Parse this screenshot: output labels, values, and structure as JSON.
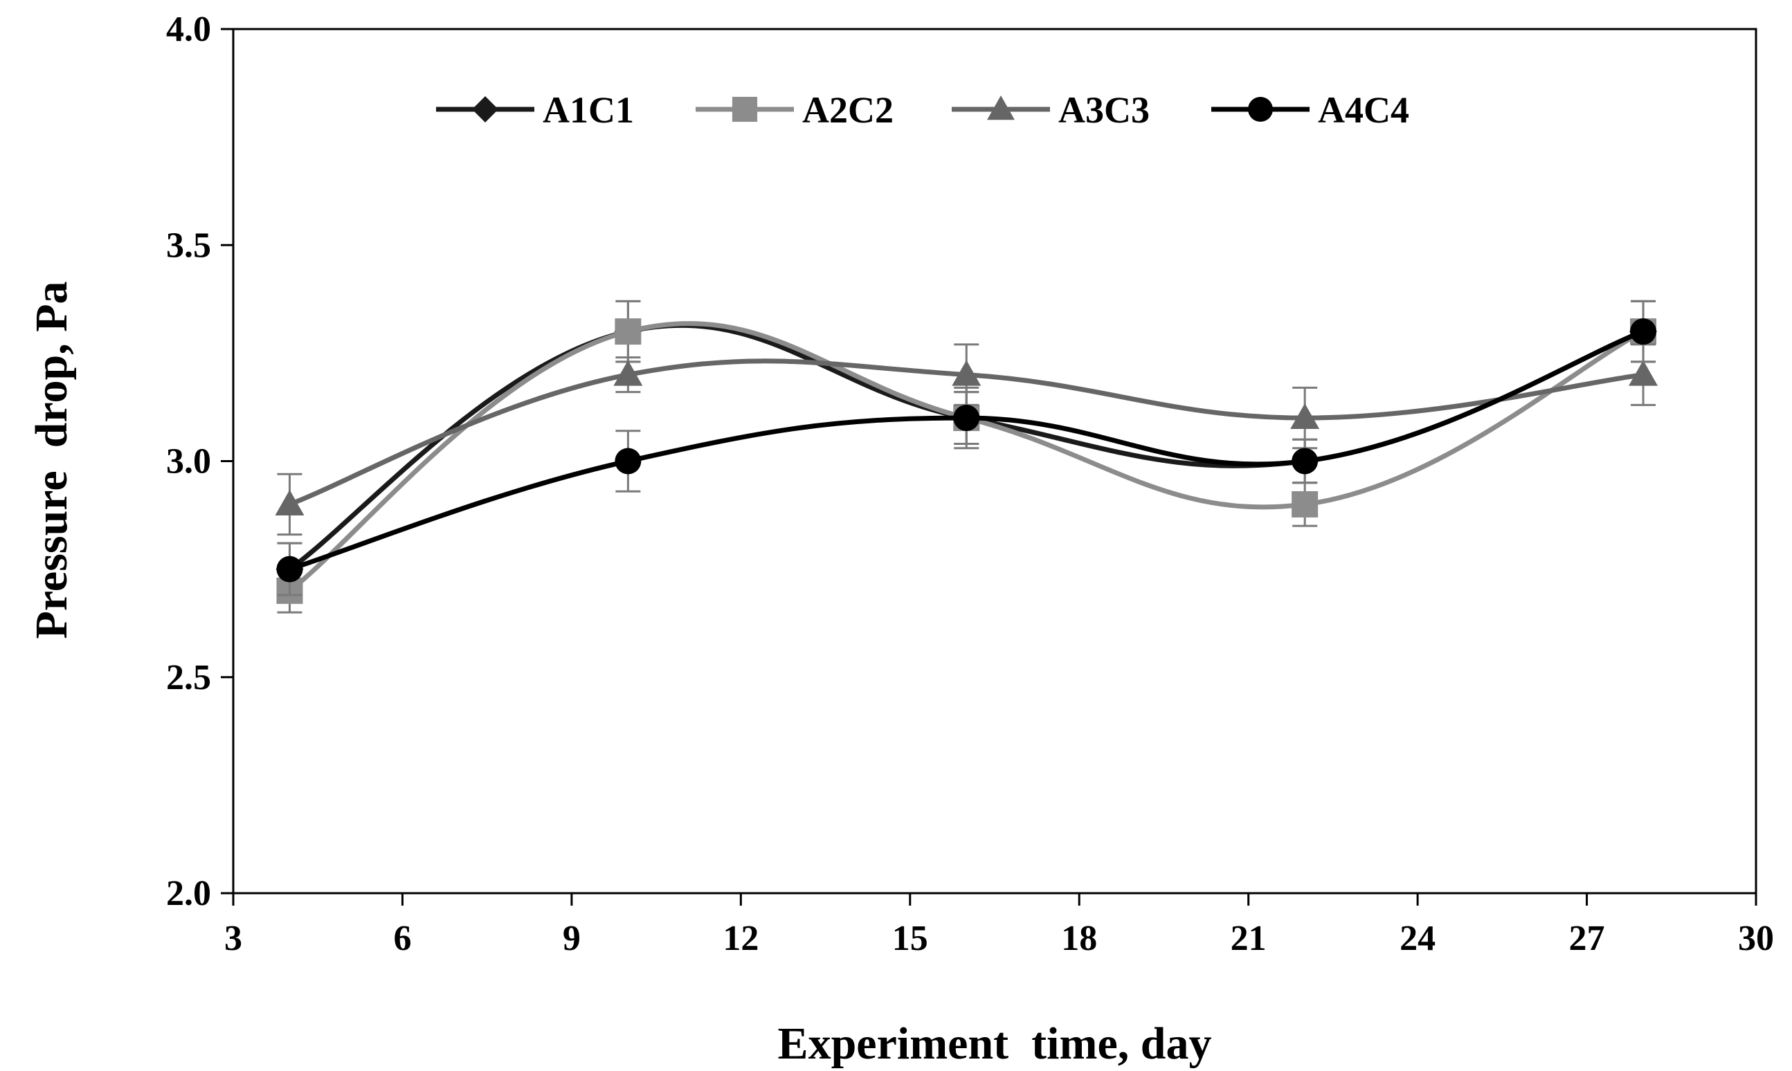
{
  "chart_data": {
    "type": "line",
    "title": "",
    "xlabel": "Experiment  time, day",
    "ylabel": "Pressure  drop, Pa",
    "xlim": [
      3,
      30
    ],
    "ylim": [
      2.0,
      4.0
    ],
    "x_ticks": [
      3,
      6,
      9,
      12,
      15,
      18,
      21,
      24,
      27,
      30
    ],
    "x_tick_labels": [
      "3",
      "6",
      "9",
      "12",
      "15",
      "18",
      "21",
      "24",
      "27",
      "30"
    ],
    "y_ticks": [
      2.0,
      2.5,
      3.0,
      3.5,
      4.0
    ],
    "y_tick_labels": [
      "2.0",
      "2.5",
      "3.0",
      "3.5",
      "4.0"
    ],
    "legend_position": "top",
    "smooth": true,
    "x": [
      4,
      10,
      16,
      22,
      28
    ],
    "series": [
      {
        "name": "A1C1",
        "marker": "diamond",
        "color": "#1a1a1a",
        "values": [
          2.75,
          3.3,
          3.1,
          3.0,
          3.3
        ],
        "errors": [
          0.06,
          0.07,
          0.07,
          0.05,
          0.07
        ]
      },
      {
        "name": "A2C2",
        "marker": "square",
        "color": "#8c8c8c",
        "values": [
          2.7,
          3.3,
          3.1,
          2.9,
          3.3
        ],
        "errors": [
          0.05,
          0.07,
          0.06,
          0.05,
          0.07
        ]
      },
      {
        "name": "A3C3",
        "marker": "triangle",
        "color": "#666666",
        "values": [
          2.9,
          3.2,
          3.2,
          3.1,
          3.2
        ],
        "errors": [
          0.07,
          0.04,
          0.07,
          0.07,
          0.07
        ]
      },
      {
        "name": "A4C4",
        "marker": "circle",
        "color": "#000000",
        "values": [
          2.75,
          3.0,
          3.1,
          3.0,
          3.3
        ],
        "errors": [
          0.06,
          0.07,
          0.06,
          0.05,
          0.07
        ]
      }
    ]
  }
}
